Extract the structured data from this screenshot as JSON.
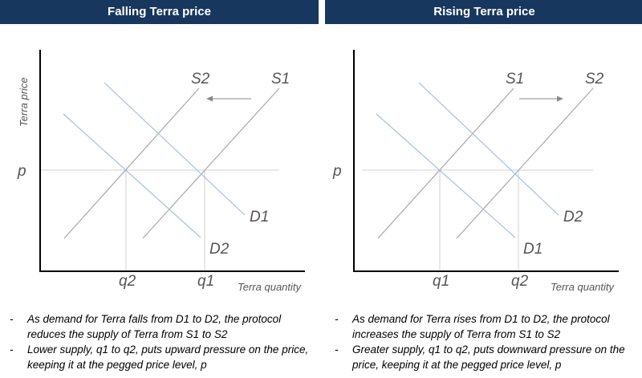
{
  "panels": [
    {
      "header": "Falling Terra price",
      "y_axis_label": "Terra price",
      "x_axis_label": "Terra quantity",
      "price_label": "p",
      "curves": {
        "supply_left": "S2",
        "supply_right": "S1",
        "demand_upper": "D1",
        "demand_lower": "D2"
      },
      "quantity_left": "q2",
      "quantity_right": "q1",
      "arrow_direction": "left",
      "notes": [
        "As demand for Terra falls from D1 to D2, the protocol reduces the supply of Terra from S1 to S2",
        "Lower supply, q1 to q2, puts upward pressure on the price, keeping it at the pegged price level, p"
      ]
    },
    {
      "header": "Rising Terra price",
      "y_axis_label": "",
      "x_axis_label": "Terra quantity",
      "price_label": "p",
      "curves": {
        "supply_left": "S1",
        "supply_right": "S2",
        "demand_upper": "D2",
        "demand_lower": "D1"
      },
      "quantity_left": "q1",
      "quantity_right": "q2",
      "arrow_direction": "right",
      "notes": [
        "As demand for Terra rises from D1 to D2, the protocol increases the supply of Terra from S1 to S2",
        "Greater supply, q1 to q2, puts downward pressure on the price, keeping it at the pegged price level, p"
      ]
    }
  ],
  "colors": {
    "header_bg": "#17375e",
    "supply_line": "#a8a8a8",
    "demand_line": "#a9bde4",
    "guide_line": "#d0d0d0",
    "axis": "#000000",
    "arrow": "#888888"
  }
}
